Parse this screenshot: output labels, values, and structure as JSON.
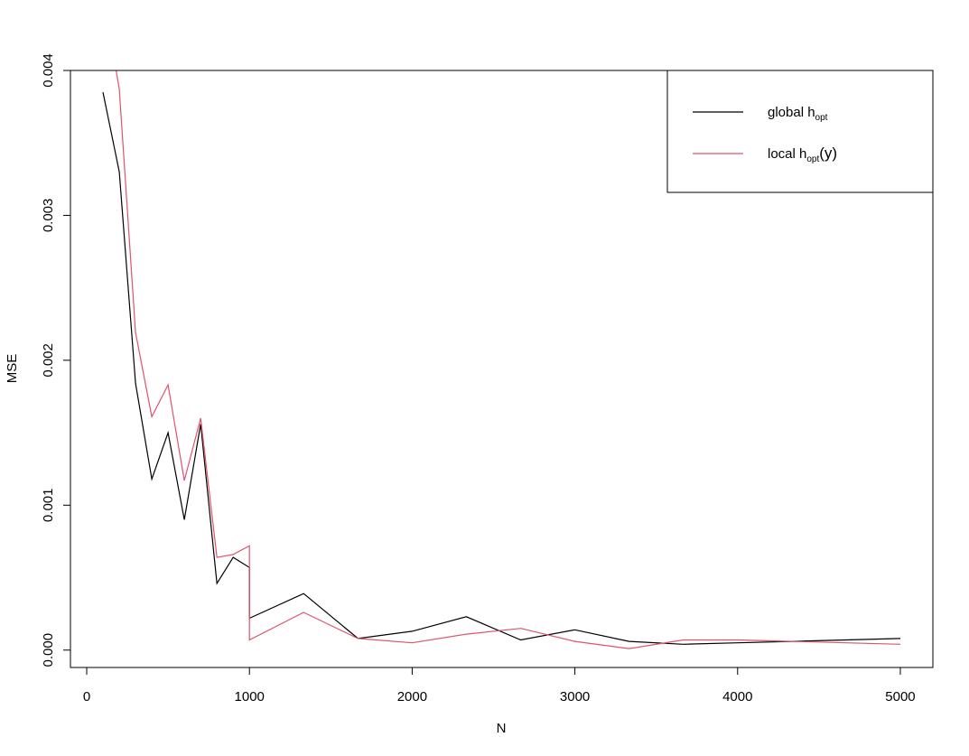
{
  "chart_data": {
    "type": "line",
    "title": "",
    "xlabel": "N",
    "ylabel": "MSE",
    "xlim": [
      -100,
      5200
    ],
    "ylim": [
      -0.00012,
      0.004
    ],
    "xticks": [
      0,
      1000,
      2000,
      3000,
      4000,
      5000
    ],
    "xtick_labels": [
      "0",
      "1000",
      "2000",
      "3000",
      "4000",
      "5000"
    ],
    "yticks": [
      0,
      0.001,
      0.002,
      0.003,
      0.004
    ],
    "ytick_labels": [
      "0.000",
      "0.001",
      "0.002",
      "0.003",
      "0.004"
    ],
    "grid": false,
    "legend_position": "top-right",
    "series": [
      {
        "name": "global h",
        "name_sub": "opt",
        "name_suffix": "",
        "color": "#000000",
        "x": [
          100,
          200,
          300,
          400,
          500,
          600,
          700,
          800,
          900,
          1000,
          1000,
          1333,
          1667,
          2000,
          2333,
          2667,
          3000,
          3333,
          3667,
          4000,
          4333,
          4667,
          5000
        ],
        "y": [
          0.00385,
          0.0033,
          0.00184,
          0.00118,
          0.0015,
          0.0009,
          0.00156,
          0.00046,
          0.00064,
          0.00057,
          0.00022,
          0.00039,
          8e-05,
          0.00013,
          0.00023,
          7e-05,
          0.00014,
          6e-05,
          4e-05,
          5e-05,
          6e-05,
          7e-05,
          8e-05
        ]
      },
      {
        "name": "local h",
        "name_sub": "opt",
        "name_suffix": "(y)",
        "color": "#DF536B",
        "x": [
          100,
          200,
          300,
          400,
          500,
          600,
          700,
          800,
          900,
          1000,
          1000,
          1333,
          1667,
          2000,
          2333,
          2667,
          3000,
          3333,
          3667,
          4000,
          4333,
          4667,
          5000
        ],
        "y": [
          0.00455,
          0.00387,
          0.00219,
          0.00161,
          0.00183,
          0.00117,
          0.0016,
          0.00064,
          0.00066,
          0.00072,
          7e-05,
          0.00026,
          8e-05,
          5e-05,
          0.00011,
          0.00015,
          6e-05,
          1e-05,
          7e-05,
          7e-05,
          6e-05,
          5e-05,
          4e-05
        ]
      }
    ]
  }
}
